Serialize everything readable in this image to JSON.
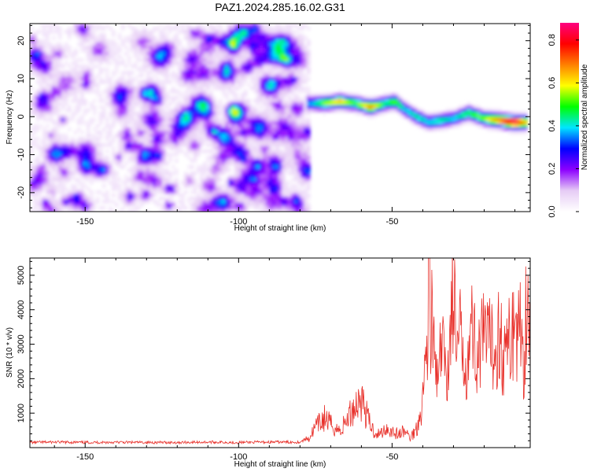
{
  "title": "PAZ1.2024.285.16.02.G31",
  "chart_data": [
    {
      "type": "heatmap",
      "xlabel": "Height of straight line (km)",
      "ylabel": "Frequency (Hz)",
      "xlim": [
        -168,
        -5
      ],
      "ylim": [
        -25,
        24.5
      ],
      "xticks": [
        -150,
        -100,
        -50
      ],
      "yticks": [
        -20,
        -10,
        0,
        10,
        20
      ],
      "colorbar": {
        "label": "Normalized spectral amplitude",
        "range": [
          0,
          0.88
        ],
        "ticks": [
          0.0,
          0.2,
          0.4,
          0.6,
          0.8
        ],
        "colormap": [
          "#ffffff",
          "#e6ccf5",
          "#8c00ff",
          "#0000ff",
          "#00e5ff",
          "#00ff00",
          "#ffff00",
          "#ff8000",
          "#ff0000",
          "#ff0080"
        ]
      },
      "noise_region_x": [
        -168,
        -77
      ],
      "signal_ridge": [
        {
          "x": -78,
          "y": 3.5,
          "a": 0.3
        },
        {
          "x": -72,
          "y": 3.5,
          "a": 0.55
        },
        {
          "x": -67,
          "y": 4.0,
          "a": 0.65
        },
        {
          "x": -62,
          "y": 3.5,
          "a": 0.5
        },
        {
          "x": -57,
          "y": 2.5,
          "a": 0.7
        },
        {
          "x": -52,
          "y": 3.5,
          "a": 0.45
        },
        {
          "x": -49,
          "y": 4.0,
          "a": 0.55
        },
        {
          "x": -46,
          "y": 2.0,
          "a": 0.4
        },
        {
          "x": -42,
          "y": 0.0,
          "a": 0.45
        },
        {
          "x": -38,
          "y": -1.5,
          "a": 0.4
        },
        {
          "x": -34,
          "y": -1.0,
          "a": 0.45
        },
        {
          "x": -30,
          "y": -0.5,
          "a": 0.4
        },
        {
          "x": -25,
          "y": 1.0,
          "a": 0.5
        },
        {
          "x": -20,
          "y": -0.5,
          "a": 0.55
        },
        {
          "x": -15,
          "y": -1.0,
          "a": 0.7
        },
        {
          "x": -10,
          "y": -1.5,
          "a": 0.88
        },
        {
          "x": -6,
          "y": -1.5,
          "a": 0.6
        }
      ]
    },
    {
      "type": "line",
      "xlabel": "Height of straight line (km)",
      "ylabel": "SNR (10 * v/v)",
      "xlim": [
        -168,
        -5
      ],
      "ylim": [
        0,
        5500
      ],
      "xticks": [
        -150,
        -100,
        -50
      ],
      "yticks": [
        1000,
        2000,
        3000,
        4000,
        5000
      ],
      "color": "#e8302a",
      "series": [
        {
          "x": [
            -168,
            -160,
            -150,
            -140,
            -130,
            -120,
            -110,
            -100,
            -90,
            -80,
            -77,
            -75,
            -72,
            -70,
            -67,
            -65,
            -62,
            -60,
            -58,
            -56,
            -54,
            -52,
            -50,
            -48,
            -46,
            -44,
            -42,
            -41,
            -40,
            -39,
            -38,
            -36,
            -35,
            -34,
            -32,
            -30,
            -29,
            -28,
            -26,
            -24,
            -22,
            -20,
            -18,
            -16,
            -15,
            -14,
            -12,
            -11,
            -10,
            -9,
            -8,
            -7,
            -6,
            -5
          ],
          "y": [
            150,
            160,
            150,
            155,
            150,
            150,
            160,
            150,
            160,
            160,
            300,
            600,
            900,
            700,
            500,
            800,
            1300,
            1500,
            900,
            500,
            400,
            600,
            500,
            400,
            500,
            300,
            600,
            1000,
            1500,
            2700,
            4900,
            2500,
            1800,
            3100,
            2200,
            5000,
            2600,
            3400,
            2600,
            3600,
            2800,
            3300,
            3100,
            3000,
            3800,
            2700,
            3100,
            3500,
            3900,
            3400,
            3700,
            2500,
            5300,
            3000
          ]
        }
      ]
    }
  ]
}
